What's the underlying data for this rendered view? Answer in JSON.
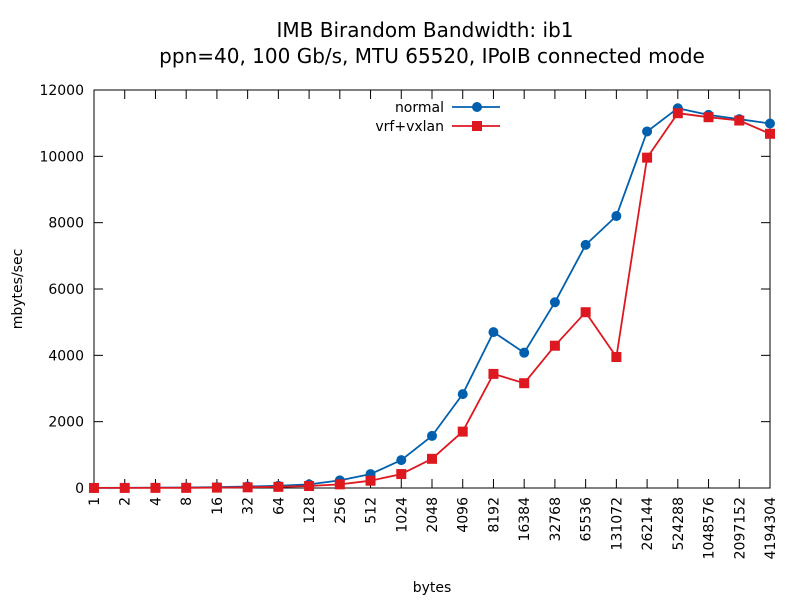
{
  "chart_data": {
    "type": "line",
    "title": "IMB Birandom Bandwidth: ib1",
    "subtitle": "ppn=40, 100 Gb/s, MTU 65520, IPoIB connected mode",
    "xlabel": "bytes",
    "ylabel": "mbytes/sec",
    "categories": [
      "1",
      "2",
      "4",
      "8",
      "16",
      "32",
      "64",
      "128",
      "256",
      "512",
      "1024",
      "2048",
      "4096",
      "8192",
      "16384",
      "32768",
      "65536",
      "131072",
      "262144",
      "524288",
      "1048576",
      "2097152",
      "4194304"
    ],
    "ylim": [
      0,
      12000
    ],
    "yticks": [
      "0",
      "2000",
      "4000",
      "6000",
      "8000",
      "10000",
      "12000"
    ],
    "grid": false,
    "legend_position": "top-center",
    "series": [
      {
        "name": "normal",
        "color": "#0060ad",
        "marker": "circle",
        "values": [
          3,
          6,
          12,
          14,
          28,
          45,
          65,
          110,
          230,
          420,
          840,
          1570,
          2830,
          4700,
          4080,
          5600,
          7330,
          8200,
          10750,
          11450,
          11250,
          11120,
          10990
        ]
      },
      {
        "name": "vrf+vxlan",
        "color": "#dd181f",
        "marker": "square",
        "values": [
          2,
          3,
          4,
          5,
          12,
          20,
          35,
          60,
          110,
          220,
          420,
          880,
          1700,
          3440,
          3160,
          4290,
          5300,
          3950,
          9960,
          11300,
          11180,
          11080,
          10680
        ]
      }
    ]
  }
}
